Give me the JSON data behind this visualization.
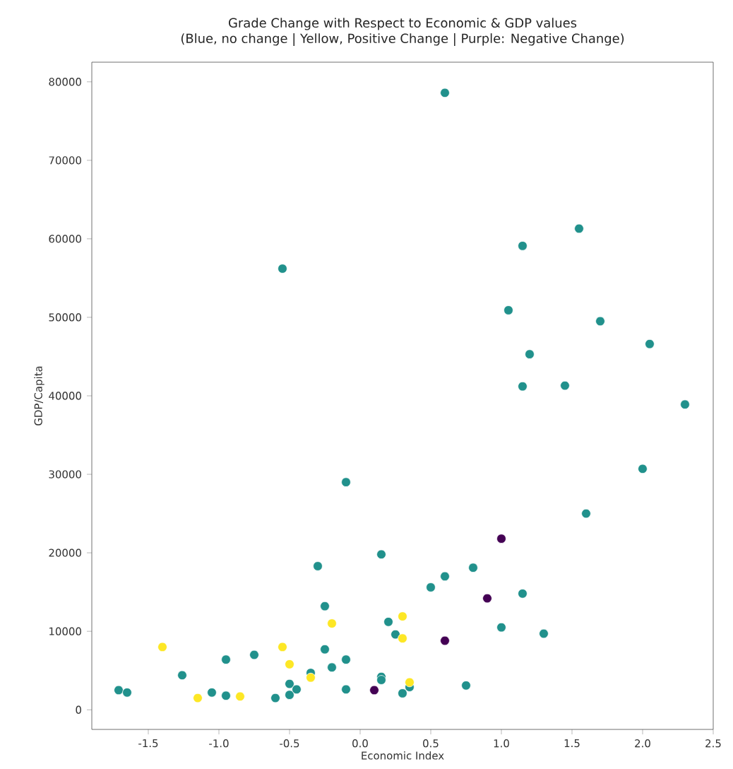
{
  "chart_data": {
    "type": "scatter",
    "title": "Grade Change with Respect to Economic & GDP values\n(Blue, no change | Yellow, Positive Change | Purple: Negative Change)",
    "xlabel": "Economic Index",
    "ylabel": "GDP/Capita",
    "xlim": [
      -1.9,
      2.5
    ],
    "ylim": [
      -2500,
      82500
    ],
    "xticks": [
      -1.5,
      {
        "value": -1,
        "label": "-1.0"
      },
      -0.5,
      {
        "value": 0,
        "label": "0.0"
      },
      0.5,
      {
        "value": 1,
        "label": "1.0"
      },
      1.5,
      {
        "value": 2,
        "label": "2.0"
      },
      2.5
    ],
    "yticks": [
      0,
      10000,
      20000,
      30000,
      40000,
      50000,
      60000,
      70000,
      80000
    ],
    "grid": false,
    "legend": false,
    "marker": "circle",
    "series": [
      {
        "color": "#21918c",
        "x": [
          -1.71,
          -1.65,
          -1.26,
          -1.05,
          -0.95,
          -0.95,
          -0.75,
          -0.6,
          -0.5,
          -0.5,
          -0.45,
          -0.35,
          -0.3,
          -0.25,
          -0.25,
          -0.2,
          -0.1,
          -0.1,
          0.15,
          0.2,
          0.25,
          0.15,
          0.15,
          0.3,
          0.35,
          0.5,
          0.6,
          0.8,
          1.15,
          1.0,
          1.3,
          0.75,
          2.0,
          1.6,
          0.6,
          -0.55,
          1.55,
          1.15,
          1.05,
          1.7,
          2.05,
          1.2,
          1.15,
          1.45,
          2.3,
          -0.1
        ],
        "values": [
          2500,
          2200,
          4400,
          2200,
          6400,
          1800,
          7000,
          1500,
          3300,
          1900,
          2600,
          4700,
          18300,
          13200,
          7700,
          5400,
          6400,
          2600,
          19800,
          11200,
          9600,
          4200,
          3800,
          2100,
          2900,
          15600,
          17000,
          18100,
          14800,
          10500,
          9700,
          3100,
          30700,
          25000,
          78600,
          56200,
          61300,
          59100,
          50900,
          49500,
          46600,
          45300,
          41200,
          41300,
          38900,
          29000
        ]
      },
      {
        "color": "#fde725",
        "x": [
          -1.4,
          -1.15,
          -0.85,
          -0.55,
          -0.5,
          -0.35,
          -0.2,
          0.3,
          0.3,
          0.35
        ],
        "values": [
          8000,
          1500,
          1700,
          8000,
          5800,
          4100,
          11000,
          11900,
          9100,
          3500
        ]
      },
      {
        "color": "#440154",
        "x": [
          0.1,
          0.6,
          0.9,
          1.0
        ],
        "values": [
          2500,
          8800,
          14200,
          21800
        ]
      }
    ]
  }
}
